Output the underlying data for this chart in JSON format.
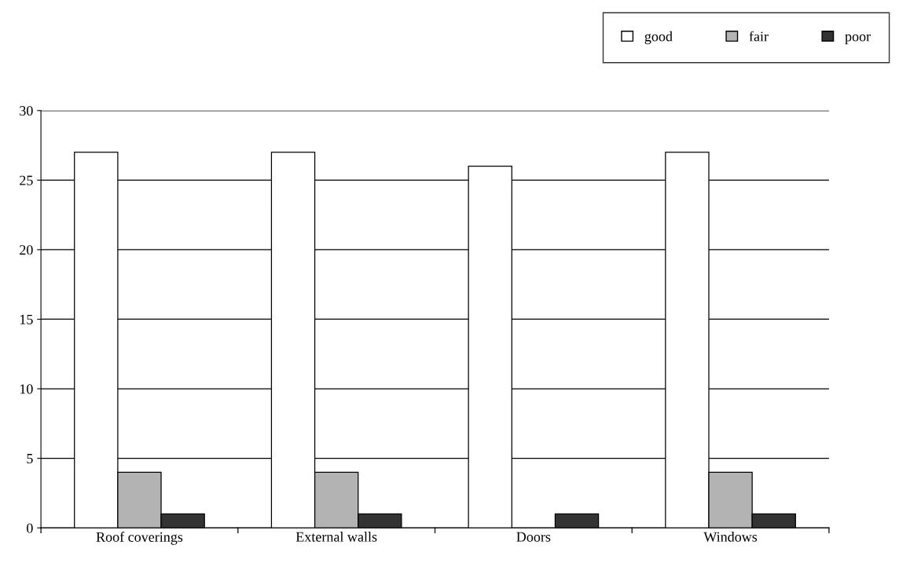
{
  "chart_data": {
    "type": "bar",
    "categories": [
      "Roof coverings",
      "External walls",
      "Doors",
      "Windows"
    ],
    "series": [
      {
        "name": "good",
        "color": "#ffffff",
        "values": [
          27,
          27,
          26,
          27
        ]
      },
      {
        "name": "fair",
        "color": "#b3b3b3",
        "values": [
          4,
          4,
          null,
          4
        ]
      },
      {
        "name": "poor",
        "color": "#333333",
        "values": [
          1,
          1,
          1,
          1
        ]
      }
    ],
    "ylim": [
      0,
      30
    ],
    "yticks": [
      0,
      5,
      10,
      15,
      20,
      25,
      30
    ],
    "grid": "y",
    "legend": "top right"
  }
}
